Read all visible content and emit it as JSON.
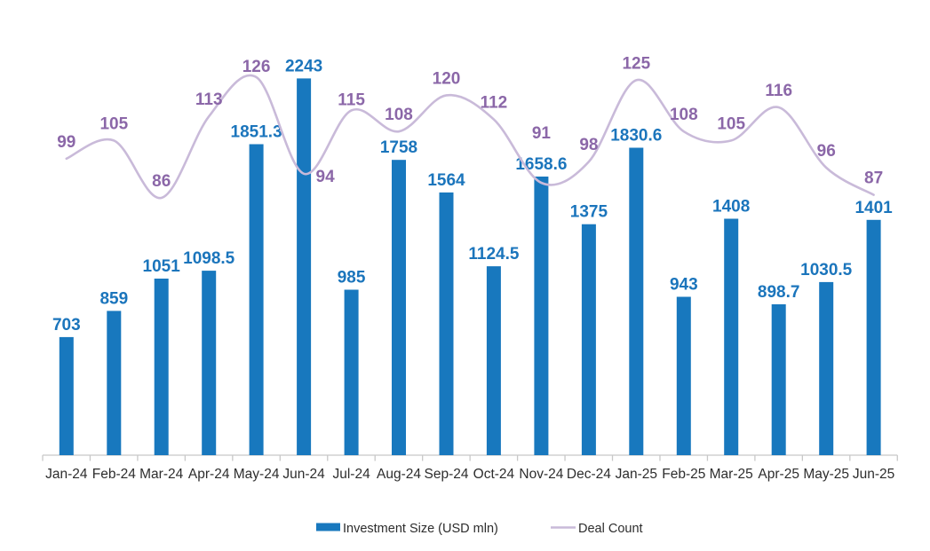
{
  "chart_data": {
    "type": "combo-bar-line",
    "title": "",
    "categories": [
      "Jan-24",
      "Feb-24",
      "Mar-24",
      "Apr-24",
      "May-24",
      "Jun-24",
      "Jul-24",
      "Aug-24",
      "Sep-24",
      "Oct-24",
      "Nov-24",
      "Dec-24",
      "Jan-25",
      "Feb-25",
      "Mar-25",
      "Apr-25",
      "May-25",
      "Jun-25"
    ],
    "series": [
      {
        "name": "Investment Size (USD mln)",
        "type": "bar",
        "values": [
          703,
          859,
          1051,
          1098.5,
          1851.3,
          2243,
          985,
          1758,
          1564,
          1124.5,
          1658.6,
          1375,
          1830.6,
          943,
          1408,
          898.7,
          1030.5,
          1401
        ]
      },
      {
        "name": "Deal Count",
        "type": "line",
        "smooth": true,
        "values": [
          99,
          105,
          86,
          113,
          126,
          94,
          115,
          108,
          120,
          112,
          91,
          98,
          125,
          108,
          105,
          116,
          96,
          87
        ]
      }
    ],
    "data_labels_visible": true,
    "grid": false,
    "axes": {
      "x": {
        "labels_visible": true
      },
      "y": {
        "visible": false
      }
    },
    "legend": {
      "position": "bottom-center",
      "items": [
        {
          "label": "Investment Size (USD mln)",
          "swatch": "bar"
        },
        {
          "label": "Deal Count",
          "swatch": "line"
        }
      ]
    },
    "colors": {
      "bar": "#1878BE",
      "bar_label": "#1B75BC",
      "line": "#C9BAD9",
      "line_label": "#8B67A8",
      "axis": "#C8C8C8",
      "axis_text": "#2D2D2D",
      "legend_text": "#2D2D2D",
      "background": "#FFFFFF"
    }
  }
}
